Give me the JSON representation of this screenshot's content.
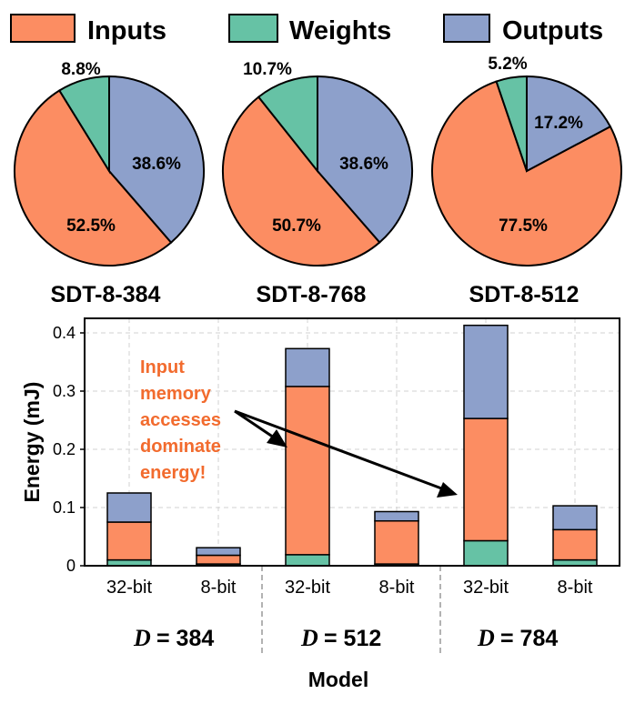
{
  "colors": {
    "inputs": "#fc8d62",
    "weights": "#66c2a5",
    "outputs": "#8da0cb",
    "annotation": "#f26b2e"
  },
  "legend": [
    {
      "label": "Inputs",
      "color": "#fc8d62"
    },
    {
      "label": "Weights",
      "color": "#66c2a5"
    },
    {
      "label": "Outputs",
      "color": "#8da0cb"
    }
  ],
  "chart_data": [
    {
      "type": "pie",
      "title": "SDT-8-384",
      "labels": [
        "Inputs",
        "Weights",
        "Outputs"
      ],
      "values": [
        52.5,
        8.8,
        38.6
      ],
      "value_labels": [
        "52.5%",
        "8.8%",
        "38.6%"
      ]
    },
    {
      "type": "pie",
      "title": "SDT-8-768",
      "labels": [
        "Inputs",
        "Weights",
        "Outputs"
      ],
      "values": [
        50.7,
        10.7,
        38.6
      ],
      "value_labels": [
        "50.7%",
        "10.7%",
        "38.6%"
      ]
    },
    {
      "type": "pie",
      "title": "SDT-8-512",
      "labels": [
        "Inputs",
        "Weights",
        "Outputs"
      ],
      "values": [
        77.5,
        5.2,
        17.2
      ],
      "value_labels": [
        "77.5%",
        "5.2%",
        "17.2%"
      ]
    },
    {
      "type": "bar",
      "stacked": true,
      "categories": [
        "32-bit",
        "8-bit",
        "32-bit",
        "8-bit",
        "32-bit",
        "8-bit"
      ],
      "groups": [
        {
          "var": "D",
          "value": "= 384"
        },
        {
          "var": "D",
          "value": "= 512"
        },
        {
          "var": "D",
          "value": "= 784"
        }
      ],
      "series": [
        {
          "name": "Weights",
          "values": [
            0.01,
            0.003,
            0.019,
            0.003,
            0.043,
            0.01
          ]
        },
        {
          "name": "Inputs",
          "values": [
            0.065,
            0.015,
            0.289,
            0.074,
            0.21,
            0.052
          ]
        },
        {
          "name": "Outputs",
          "values": [
            0.05,
            0.013,
            0.065,
            0.016,
            0.16,
            0.041
          ]
        }
      ],
      "ylabel": "Energy (mJ)",
      "xlabel": "Model",
      "ylim": [
        0,
        0.425
      ],
      "yticks": [
        0,
        0.1,
        0.2,
        0.3,
        0.4
      ],
      "ytick_labels": [
        "0",
        "0.1",
        "0.2",
        "0.3",
        "0.4"
      ],
      "grid": true,
      "annotation": [
        "Input",
        "memory",
        "accesses",
        "dominate",
        "energy!"
      ]
    }
  ]
}
